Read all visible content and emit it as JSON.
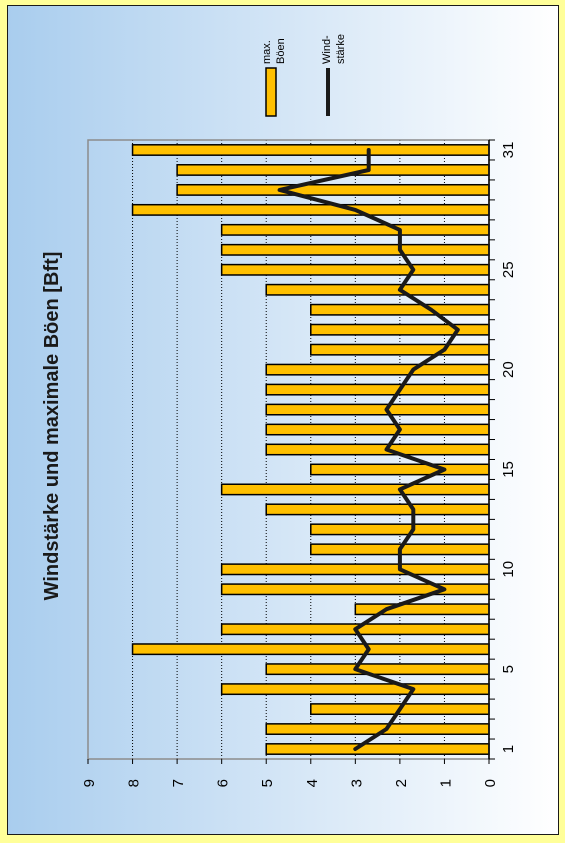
{
  "chart_data": {
    "type": "bar",
    "orientation": "rotated-90-ccw",
    "title": "Windstärke und maximale Böen [Bft]",
    "xlabel": "",
    "ylabel": "",
    "ylim": [
      0,
      9
    ],
    "y_ticks": [
      0,
      1,
      2,
      3,
      4,
      5,
      6,
      7,
      8,
      9
    ],
    "x_tick_labels": [
      1,
      5,
      10,
      15,
      20,
      25,
      31
    ],
    "grid": true,
    "legend_position": "top-right",
    "categories": [
      1,
      2,
      3,
      4,
      5,
      6,
      7,
      8,
      9,
      10,
      11,
      12,
      13,
      14,
      15,
      16,
      17,
      18,
      19,
      20,
      21,
      22,
      23,
      24,
      25,
      26,
      27,
      28,
      29,
      30,
      31
    ],
    "series": [
      {
        "name": "max. Böen",
        "type": "bar",
        "color": "#ffc000",
        "values": [
          5,
          5,
          4,
          6,
          5,
          8,
          6,
          3,
          6,
          6,
          4,
          4,
          5,
          6,
          4,
          5,
          5,
          5,
          5,
          5,
          4,
          4,
          4,
          5,
          6,
          6,
          6,
          8,
          7,
          7,
          8
        ]
      },
      {
        "name": "Wind-stärke",
        "type": "line",
        "color": "#1a1a1a",
        "values": [
          3,
          2.3,
          2,
          1.7,
          3,
          2.7,
          3,
          2.3,
          1,
          2,
          2,
          1.7,
          1.7,
          2,
          1,
          2.3,
          2,
          2.3,
          2,
          1.7,
          1,
          0.7,
          1.3,
          2,
          1.7,
          2,
          2,
          3,
          4.7,
          2.7,
          2.7
        ]
      }
    ],
    "legend": [
      {
        "line1": "max.",
        "line2": "Böen"
      },
      {
        "line1": "Wind-",
        "line2": "stärke"
      }
    ]
  }
}
